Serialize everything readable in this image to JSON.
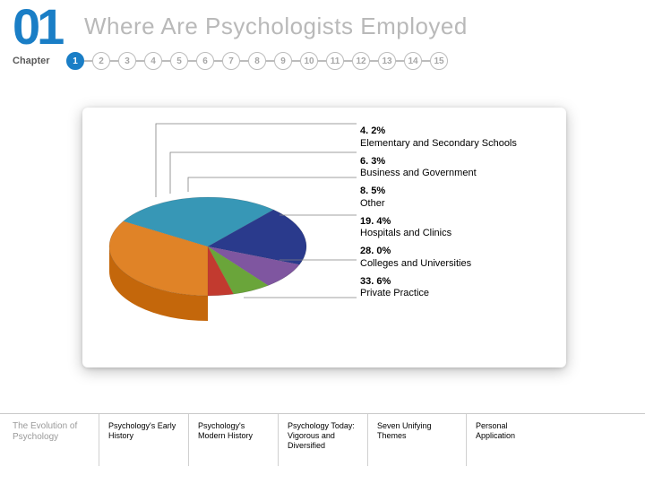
{
  "header": {
    "chapter_number": "01",
    "title": "Where Are Psychologists Employed",
    "chapter_label": "Chapter",
    "nav": {
      "count": 15,
      "active": 1
    }
  },
  "chart": {
    "type": "pie",
    "style": "3d",
    "background_color": "#ffffff",
    "panel_shadow": true,
    "leader_line_color": "#808080",
    "slices": [
      {
        "value": 33.6,
        "label": "Private Practice",
        "color": "#e08327"
      },
      {
        "value": 28.0,
        "label": "Colleges and Universities",
        "color": "#3797b6"
      },
      {
        "value": 19.4,
        "label": "Hospitals and Clinics",
        "color": "#2a3a8c"
      },
      {
        "value": 8.5,
        "label": "Other",
        "color": "#7f56a0"
      },
      {
        "value": 6.3,
        "label": "Business and Government",
        "color": "#6aa53a"
      },
      {
        "value": 4.2,
        "label": "Elementary and Secondary Schools",
        "color": "#c23a2f"
      }
    ],
    "legend": [
      {
        "pct": "4. 2%",
        "label": "Elementary and Secondary Schools"
      },
      {
        "pct": "6. 3%",
        "label": "Business and Government"
      },
      {
        "pct": "8. 5%",
        "label": "Other"
      },
      {
        "pct": "19. 4%",
        "label": "Hospitals and Clinics"
      },
      {
        "pct": "28. 0%",
        "label": "Colleges and Universities"
      },
      {
        "pct": "33. 6%",
        "label": "Private Practice"
      }
    ],
    "fontsize_pct": 11,
    "fontsize_label": 11
  },
  "footer": {
    "evolution_label": "The Evolution of Psychology",
    "topics": [
      "Psychology's Early History",
      "Psychology's Modern History",
      "Psychology Today: Vigorous and Diversified",
      "Seven Unifying Themes",
      "Personal Application"
    ]
  }
}
